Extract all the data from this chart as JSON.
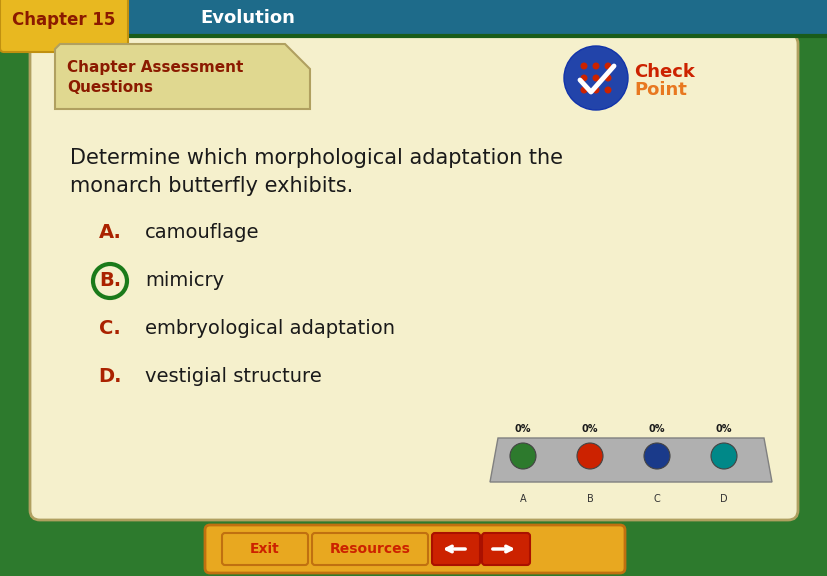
{
  "header_bg": "#1e6b8a",
  "header_chapter_box": "#e8b820",
  "header_chapter": "Chapter 15",
  "header_chapter_color": "#8b1a00",
  "header_title": "Evolution",
  "header_title_color": "#ffffff",
  "outer_bg": "#2d7a2d",
  "card_bg": "#f5f0cc",
  "card_border": "#b0a060",
  "tab_bg": "#e0d890",
  "tab_text_color": "#8b1a00",
  "tab_line1": "Chapter Assessment",
  "tab_line2": "Questions",
  "question_line1": "Determine which morphological adaptation the",
  "question_line2": "monarch butterfly exhibits.",
  "question_color": "#1a1a1a",
  "label_color": "#aa2200",
  "answer_text_color": "#1a1a1a",
  "circle_color": "#1a7a1a",
  "answers": [
    {
      "label": "A.",
      "text": "camouflage",
      "circled": false
    },
    {
      "label": "B.",
      "text": "mimicry",
      "circled": true
    },
    {
      "label": "C.",
      "text": "embryological adaptation",
      "circled": false
    },
    {
      "label": "D.",
      "text": "vestigial structure",
      "circled": false
    }
  ],
  "poll_bg": "#b0b0b0",
  "poll_platform_color": "#909090",
  "poll_labels": [
    "0%",
    "0%",
    "0%",
    "0%"
  ],
  "poll_btn_colors": [
    "#2d7a2d",
    "#cc2200",
    "#1a3a8a",
    "#008888"
  ],
  "exit_bg": "#e8a820",
  "exit_text": "Exit",
  "resources_text": "Resources",
  "btn_text_color": "#cc2200",
  "arrow_bg": "#cc2200",
  "nav_bar_bg": "#e8a820",
  "nav_bar_border": "#c07010"
}
